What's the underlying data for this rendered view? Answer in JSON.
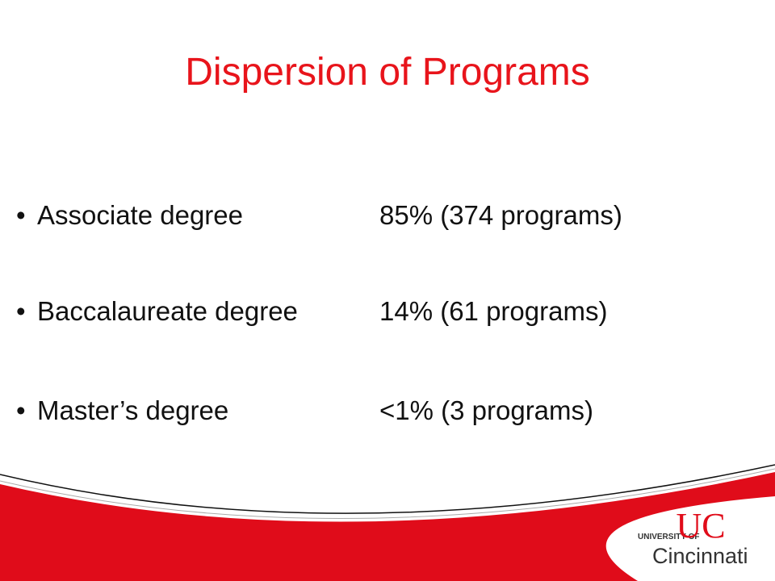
{
  "title": "Dispersion of Programs",
  "items": [
    {
      "label": "Associate degree",
      "value": "85% (374 programs)"
    },
    {
      "label": "Baccalaureate degree",
      "value": "14% (61 programs)"
    },
    {
      "label": "Master’s degree",
      "value": "<1% (3 programs)"
    }
  ],
  "logo": {
    "prefix": "UNIVERSITY OF",
    "monogram": "UC",
    "name": "Cincinnati"
  }
}
